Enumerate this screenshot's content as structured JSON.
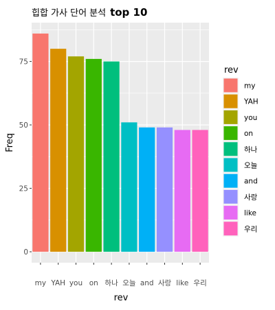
{
  "chart_data": {
    "type": "bar",
    "title_prefix": "힙합 가사 단어 분석",
    "title_suffix": "top 10",
    "xlabel": "rev",
    "ylabel": "Freq",
    "categories": [
      "my",
      "YAH",
      "you",
      "on",
      "하나",
      "오늘",
      "and",
      "사랑",
      "like",
      "우리"
    ],
    "values": [
      86,
      80,
      77,
      76,
      75,
      51,
      49,
      49,
      48,
      48
    ],
    "colors": [
      "#F8766D",
      "#D89000",
      "#A3A500",
      "#39B600",
      "#00BF7D",
      "#00BFC4",
      "#00B0F6",
      "#9590FF",
      "#E76BF3",
      "#FF62BC"
    ],
    "yticks": [
      0,
      25,
      50,
      75
    ],
    "ylim": [
      -4.3,
      90.3
    ],
    "grid": true,
    "panel_background": "#EBEBEB",
    "legend": {
      "title": "rev",
      "placement": "right",
      "entries": [
        "my",
        "YAH",
        "you",
        "on",
        "하나",
        "오늘",
        "and",
        "사랑",
        "like",
        "우리"
      ]
    }
  }
}
